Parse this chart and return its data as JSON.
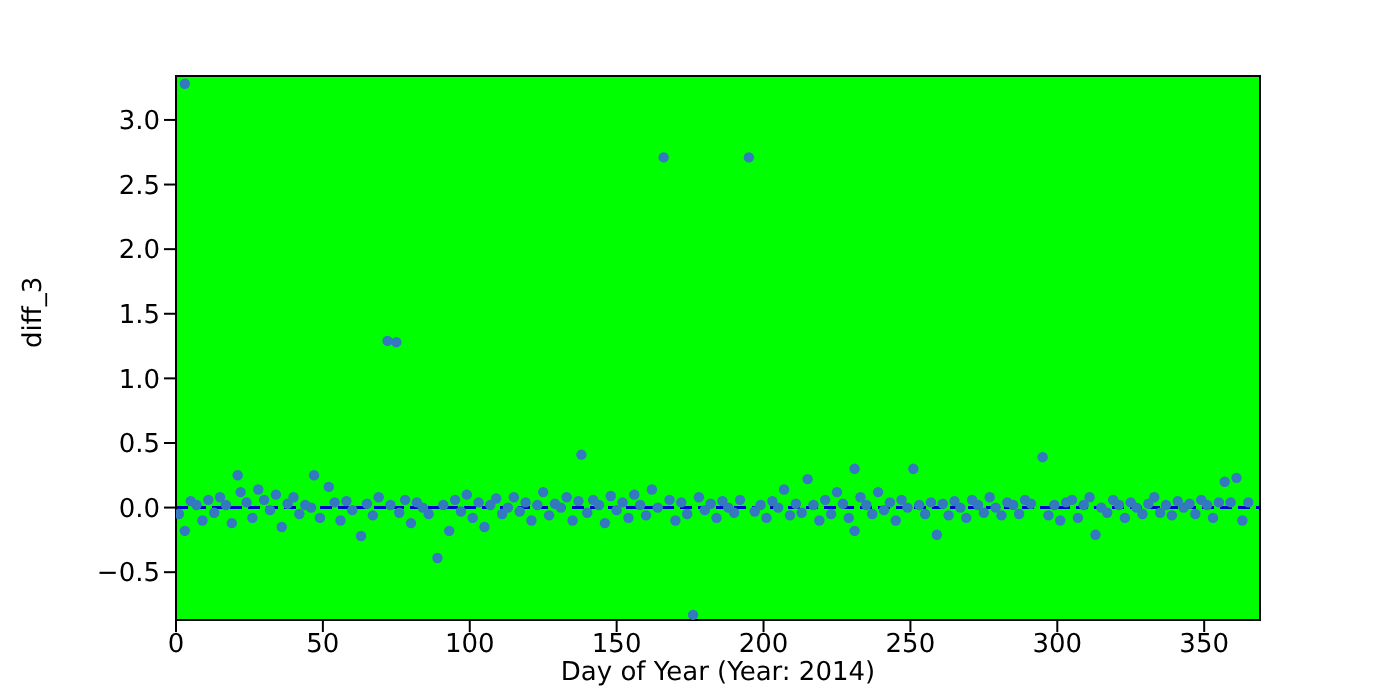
{
  "chart_data": {
    "type": "scatter",
    "xlabel": "Day of Year (Year: 2014)",
    "ylabel": "diff_3",
    "xlim": [
      0,
      369
    ],
    "ylim": [
      -0.87,
      3.34
    ],
    "xticks": [
      0,
      50,
      100,
      150,
      200,
      250,
      300,
      350
    ],
    "yticks": [
      {
        "value": -0.5,
        "label": "−0.5"
      },
      {
        "value": 0,
        "label": "0.0"
      },
      {
        "value": 0.5,
        "label": "0.5"
      },
      {
        "value": 1,
        "label": "1.0"
      },
      {
        "value": 1.5,
        "label": "1.5"
      },
      {
        "value": 2,
        "label": "2.0"
      },
      {
        "value": 2.5,
        "label": "2.5"
      },
      {
        "value": 3,
        "label": "3.0"
      }
    ],
    "marker": "circle",
    "ref_lines": [
      {
        "axis": "y",
        "value": 0,
        "color": "#0000cc",
        "line_style": "dashed"
      }
    ],
    "series": [
      {
        "color": "#3478bf",
        "x": [
          1,
          3,
          3,
          5,
          7,
          9,
          11,
          13,
          15,
          17,
          19,
          21,
          22,
          24,
          26,
          28,
          30,
          32,
          34,
          36,
          38,
          40,
          42,
          44,
          46,
          47,
          49,
          52,
          54,
          56,
          58,
          60,
          63,
          65,
          67,
          69,
          72,
          73,
          75,
          76,
          78,
          80,
          82,
          84,
          86,
          89,
          91,
          93,
          95,
          97,
          99,
          101,
          103,
          105,
          107,
          109,
          111,
          113,
          115,
          117,
          119,
          121,
          123,
          125,
          127,
          129,
          131,
          133,
          135,
          137,
          138,
          140,
          142,
          144,
          146,
          148,
          150,
          152,
          154,
          156,
          158,
          160,
          162,
          164,
          166,
          168,
          170,
          172,
          174,
          176,
          178,
          180,
          182,
          184,
          186,
          188,
          190,
          192,
          195,
          197,
          199,
          201,
          203,
          205,
          207,
          209,
          211,
          213,
          215,
          217,
          219,
          221,
          223,
          225,
          227,
          229,
          231,
          231,
          233,
          235,
          237,
          239,
          241,
          243,
          245,
          247,
          249,
          251,
          253,
          255,
          257,
          259,
          261,
          263,
          265,
          267,
          269,
          271,
          273,
          275,
          277,
          279,
          281,
          283,
          285,
          287,
          289,
          291,
          295,
          297,
          299,
          301,
          303,
          305,
          307,
          309,
          311,
          313,
          315,
          317,
          319,
          321,
          323,
          325,
          327,
          329,
          331,
          333,
          335,
          337,
          339,
          341,
          343,
          345,
          347,
          349,
          351,
          353,
          355,
          357,
          359,
          361,
          363,
          365
        ],
        "values": [
          -0.05,
          3.28,
          -0.18,
          0.05,
          0.02,
          -0.1,
          0.06,
          -0.04,
          0.08,
          0.02,
          -0.12,
          0.25,
          0.12,
          0.04,
          -0.08,
          0.14,
          0.06,
          -0.02,
          0.1,
          -0.15,
          0.03,
          0.08,
          -0.05,
          0.02,
          0.0,
          0.25,
          -0.08,
          0.16,
          0.04,
          -0.1,
          0.05,
          -0.02,
          -0.22,
          0.03,
          -0.06,
          0.08,
          1.29,
          0.02,
          1.28,
          -0.04,
          0.06,
          -0.12,
          0.04,
          0.0,
          -0.05,
          -0.39,
          0.02,
          -0.18,
          0.06,
          -0.03,
          0.1,
          -0.08,
          0.04,
          -0.15,
          0.02,
          0.07,
          -0.05,
          0.0,
          0.08,
          -0.03,
          0.04,
          -0.1,
          0.02,
          0.12,
          -0.06,
          0.03,
          0.0,
          0.08,
          -0.1,
          0.05,
          0.41,
          -0.04,
          0.06,
          0.02,
          -0.12,
          0.09,
          -0.02,
          0.04,
          -0.08,
          0.1,
          0.02,
          -0.06,
          0.14,
          0.0,
          2.71,
          0.06,
          -0.1,
          0.04,
          -0.05,
          -0.83,
          0.08,
          -0.02,
          0.03,
          -0.08,
          0.05,
          0.0,
          -0.04,
          0.06,
          2.71,
          -0.03,
          0.02,
          -0.08,
          0.05,
          0.0,
          0.14,
          -0.06,
          0.03,
          -0.04,
          0.22,
          0.02,
          -0.1,
          0.06,
          -0.05,
          0.12,
          0.03,
          -0.08,
          0.3,
          -0.18,
          0.08,
          0.02,
          -0.05,
          0.12,
          -0.02,
          0.04,
          -0.1,
          0.06,
          0.0,
          0.3,
          0.02,
          -0.05,
          0.04,
          -0.21,
          0.03,
          -0.06,
          0.05,
          0.0,
          -0.08,
          0.06,
          0.02,
          -0.04,
          0.08,
          0.0,
          -0.06,
          0.04,
          0.02,
          -0.05,
          0.06,
          0.03,
          0.39,
          -0.06,
          0.02,
          -0.1,
          0.04,
          0.06,
          -0.08,
          0.02,
          0.08,
          -0.21,
          0.0,
          -0.04,
          0.06,
          0.02,
          -0.08,
          0.04,
          0.0,
          -0.05,
          0.03,
          0.08,
          -0.04,
          0.02,
          -0.06,
          0.05,
          0.0,
          0.03,
          -0.05,
          0.06,
          0.02,
          -0.08,
          0.04,
          0.2,
          0.04,
          0.23,
          -0.1,
          0.04
        ]
      }
    ]
  }
}
